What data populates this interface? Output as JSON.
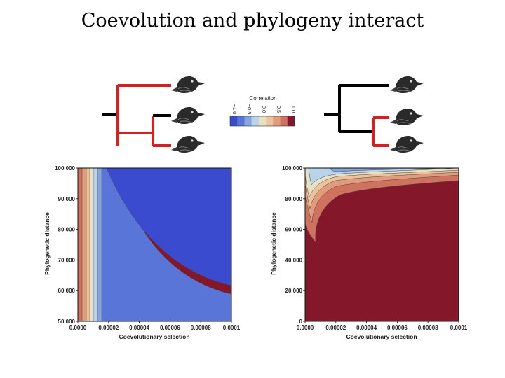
{
  "title": "Coevolution and phylogeny interact",
  "colors": {
    "tree_highlight": "#d42020",
    "tree_default": "#000000",
    "scale": [
      "#3b4bd0",
      "#5a75d8",
      "#86a6e0",
      "#b7d4ea",
      "#e6e1c6",
      "#edc29c",
      "#e19c7c",
      "#cf7260",
      "#84182a"
    ]
  },
  "colorbar": {
    "title": "Correlation",
    "ticks": [
      "−1.0",
      "−0.5",
      "0.0",
      "0.5",
      "1.0"
    ]
  },
  "trees": [
    {
      "highlighted": "outer-clade",
      "species": [
        "bird-1",
        "bird-2",
        "bird-3"
      ]
    },
    {
      "highlighted": "inner-clade",
      "species": [
        "bird-1",
        "bird-2",
        "bird-3"
      ]
    }
  ],
  "chart_data": [
    {
      "type": "heatmap",
      "xlabel": "Coevolutionary selection",
      "ylabel": "Phylogenetic distance",
      "xlim": [
        0,
        0.0001
      ],
      "ylim": [
        50000,
        100000
      ],
      "x_ticks": [
        "0.0000",
        "0.00002",
        "0.00004",
        "0.00006",
        "0.00008",
        "0.0001"
      ],
      "y_ticks": [
        "50 000",
        "60 000",
        "70 000",
        "80 000",
        "90 000",
        "100 000"
      ],
      "y_tick_values": [
        50000,
        60000,
        70000,
        80000,
        90000,
        100000
      ],
      "contour_levels": [
        -1.0,
        -0.75,
        -0.5,
        -0.25,
        0.0,
        0.25,
        0.5,
        0.75,
        1.0
      ],
      "dominant_value": -1.0
    },
    {
      "type": "heatmap",
      "xlabel": "Coevolutionary selection",
      "ylabel": "Phylogenetic distance",
      "xlim": [
        0,
        0.0001
      ],
      "ylim": [
        0,
        100000
      ],
      "x_ticks": [
        "0.0000",
        "0.00002",
        "0.00004",
        "0.00006",
        "0.00008",
        "0.0001"
      ],
      "y_ticks": [
        "0",
        "20 000",
        "40 000",
        "60 000",
        "80 000",
        "100 000"
      ],
      "y_tick_values": [
        0,
        20000,
        40000,
        60000,
        80000,
        100000
      ],
      "contour_levels": [
        -1.0,
        -0.75,
        -0.5,
        -0.25,
        0.0,
        0.25,
        0.5,
        0.75,
        1.0
      ],
      "dominant_value": 1.0
    }
  ]
}
